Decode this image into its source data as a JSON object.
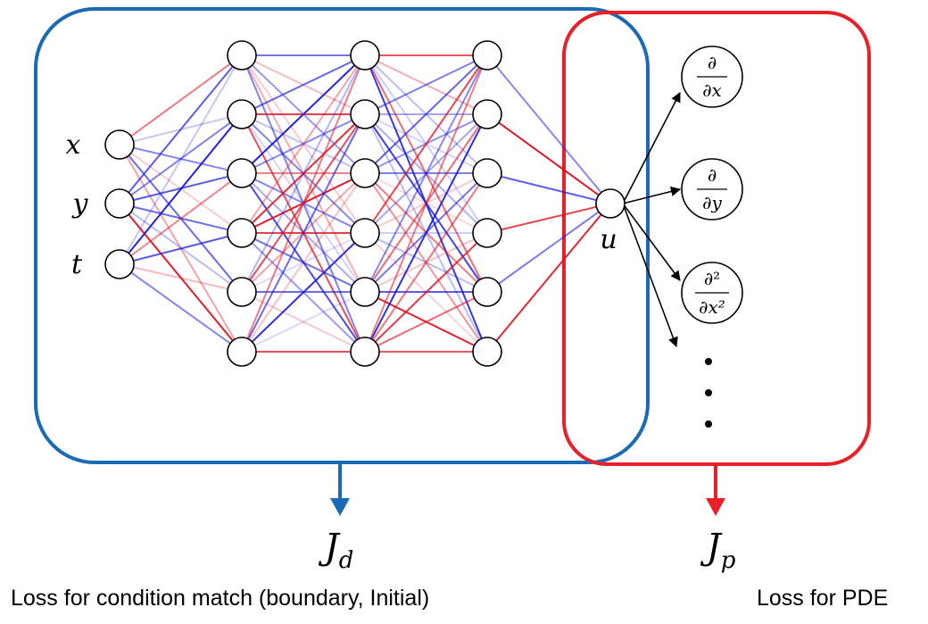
{
  "inputs": [
    {
      "label": "x"
    },
    {
      "label": "y"
    },
    {
      "label": "t"
    }
  ],
  "hidden_layers": [
    6,
    6,
    6
  ],
  "output": {
    "label": "u"
  },
  "derivatives": [
    {
      "num": "∂",
      "den": "∂x"
    },
    {
      "num": "∂",
      "den": "∂y"
    },
    {
      "num": "∂²",
      "den": "∂x²"
    }
  ],
  "loss_data": {
    "symbol": "J",
    "subscript": "d",
    "caption": "Loss for condition match (boundary, Initial)"
  },
  "loss_pde": {
    "symbol": "J",
    "subscript": "p",
    "caption": "Loss for PDE"
  },
  "colors": {
    "data_box": "#1a6bb3",
    "pde_box": "#e8202a",
    "positive_weight": "#e01020",
    "negative_weight": "#1a1ae0"
  }
}
